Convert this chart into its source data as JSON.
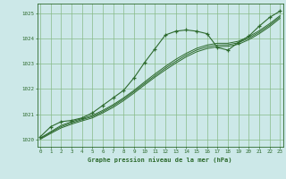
{
  "title": "Graphe pression niveau de la mer (hPa)",
  "bg_color": "#cce8e8",
  "grid_color": "#88bb88",
  "line_color": "#2d6a2d",
  "x_hours": [
    0,
    1,
    2,
    3,
    4,
    5,
    6,
    7,
    8,
    9,
    10,
    11,
    12,
    13,
    14,
    15,
    16,
    17,
    18,
    19,
    20,
    21,
    22,
    23
  ],
  "main_data": [
    1020.1,
    1020.5,
    1020.7,
    1020.75,
    1020.85,
    1021.05,
    1021.35,
    1021.65,
    1021.95,
    1022.45,
    1023.05,
    1023.6,
    1024.15,
    1024.3,
    1024.35,
    1024.3,
    1024.2,
    1023.65,
    1023.55,
    1023.85,
    1024.1,
    1024.5,
    1024.85,
    1025.1
  ],
  "smooth1": [
    1020.05,
    1020.3,
    1020.55,
    1020.7,
    1020.82,
    1020.95,
    1021.15,
    1021.38,
    1021.65,
    1021.95,
    1022.28,
    1022.6,
    1022.9,
    1023.18,
    1023.42,
    1023.62,
    1023.75,
    1023.82,
    1023.82,
    1023.9,
    1024.08,
    1024.32,
    1024.6,
    1024.92
  ],
  "smooth2": [
    1020.03,
    1020.27,
    1020.5,
    1020.65,
    1020.78,
    1020.9,
    1021.1,
    1021.33,
    1021.6,
    1021.9,
    1022.22,
    1022.53,
    1022.83,
    1023.1,
    1023.35,
    1023.55,
    1023.68,
    1023.75,
    1023.76,
    1023.84,
    1024.02,
    1024.26,
    1024.54,
    1024.87
  ],
  "smooth3": [
    1020.0,
    1020.23,
    1020.45,
    1020.6,
    1020.73,
    1020.85,
    1021.05,
    1021.27,
    1021.54,
    1021.84,
    1022.16,
    1022.47,
    1022.76,
    1023.03,
    1023.28,
    1023.48,
    1023.61,
    1023.68,
    1023.7,
    1023.78,
    1023.96,
    1024.2,
    1024.48,
    1024.81
  ],
  "ylim": [
    1019.7,
    1025.4
  ],
  "yticks": [
    1020,
    1021,
    1022,
    1023,
    1024,
    1025
  ],
  "xlim": [
    -0.3,
    23.3
  ]
}
